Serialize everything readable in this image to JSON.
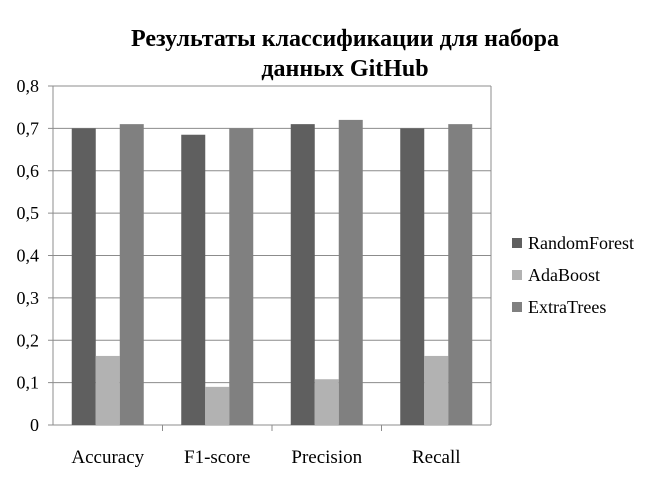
{
  "chart_data": {
    "type": "bar",
    "title_lines": [
      "Результаты классификации для набора",
      "данных GitHub"
    ],
    "categories": [
      "Accuracy",
      "F1-score",
      "Precision",
      "Recall"
    ],
    "series": [
      {
        "name": "RandomForest",
        "color": "#5f5f5f",
        "values": [
          0.7,
          0.685,
          0.71,
          0.7
        ]
      },
      {
        "name": "AdaBoost",
        "color": "#b2b2b2",
        "values": [
          0.163,
          0.09,
          0.108,
          0.163
        ]
      },
      {
        "name": "ExtraTrees",
        "color": "#808080",
        "values": [
          0.71,
          0.7,
          0.72,
          0.71
        ]
      }
    ],
    "ylim": [
      0,
      0.8
    ],
    "yticks": [
      {
        "value": 0,
        "label": "0"
      },
      {
        "value": 0.1,
        "label": "0,1"
      },
      {
        "value": 0.2,
        "label": "0,2"
      },
      {
        "value": 0.3,
        "label": "0,3"
      },
      {
        "value": 0.4,
        "label": "0,4"
      },
      {
        "value": 0.5,
        "label": "0,5"
      },
      {
        "value": 0.6,
        "label": "0,6"
      },
      {
        "value": 0.7,
        "label": "0,7"
      },
      {
        "value": 0.8,
        "label": "0,8"
      }
    ],
    "grid": true,
    "legend_position": "right"
  }
}
